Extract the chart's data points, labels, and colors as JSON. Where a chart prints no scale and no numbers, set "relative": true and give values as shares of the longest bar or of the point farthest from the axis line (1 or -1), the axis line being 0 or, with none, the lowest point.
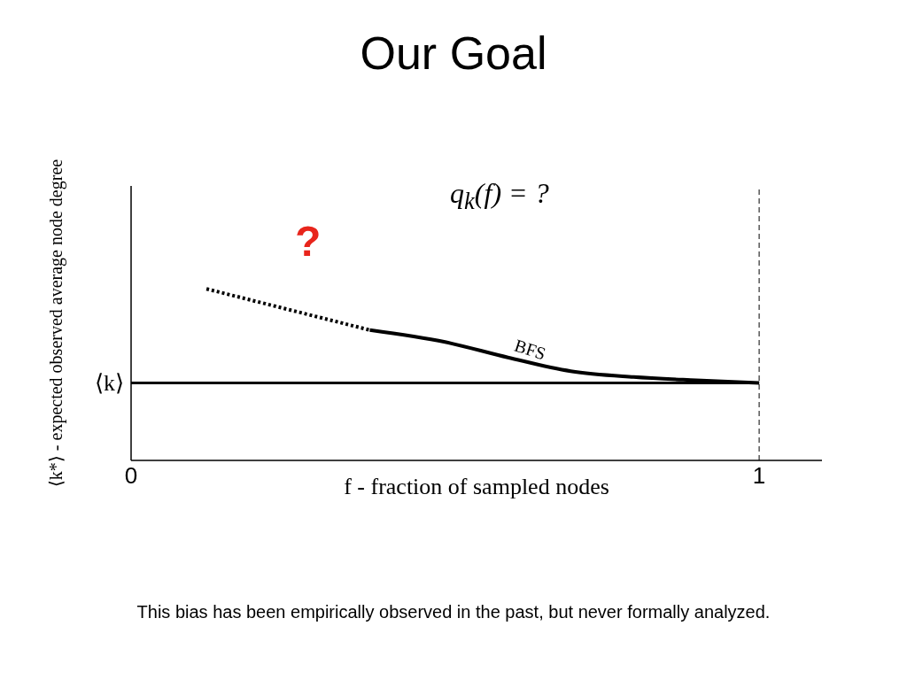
{
  "chart_data": {
    "type": "line",
    "title": "Our Goal",
    "xlabel": "f - fraction of sampled nodes",
    "ylabel": "⟨k*⟩ - expected observed average node degree",
    "relative": true,
    "xlim": [
      0,
      1.1
    ],
    "xticks": [
      0,
      1
    ],
    "marker": "none",
    "series": [
      {
        "color": "#000000",
        "line_style": "dotted",
        "x": [
          0.12,
          0.25,
          0.38
        ],
        "values": [
          1.0,
          0.88,
          0.76
        ]
      },
      {
        "name": "BFS",
        "color": "#000000",
        "line_style": "solid",
        "x": [
          0.38,
          0.5,
          0.6,
          0.7,
          0.8,
          0.9,
          1.0
        ],
        "values": [
          0.76,
          0.69,
          0.6,
          0.52,
          0.486,
          0.467,
          0.452
        ]
      },
      {
        "name": "⟨k⟩",
        "color": "#000000",
        "line_style": "solid",
        "x": [
          0,
          1
        ],
        "values": [
          0.452,
          0.452
        ]
      }
    ],
    "ref_lines": [
      {
        "axis": "x",
        "value": 1,
        "label": null,
        "color": "#000000",
        "line_style": "dashed"
      }
    ],
    "annotations": [
      "q$_{k}$(f) = ?",
      "?",
      "This bias has been empirically observed in the past, but never formally analyzed."
    ]
  }
}
